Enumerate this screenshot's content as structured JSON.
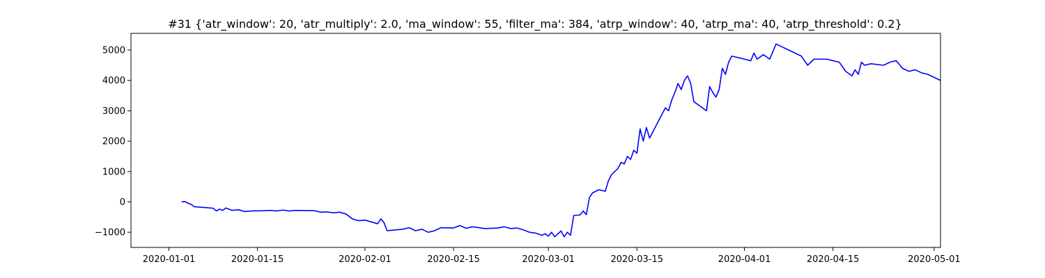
{
  "chart_data": {
    "type": "line",
    "title": "#31 {'atr_window': 20, 'atr_multiply': 2.0, 'ma_window': 55, 'filter_ma': 384, 'atrp_window': 40, 'atrp_ma': 40, 'atrp_threshold': 0.2}",
    "xlabel": "",
    "ylabel": "",
    "xlim": [
      "2019-12-26",
      "2020-05-02"
    ],
    "ylim": [
      -1500,
      5550
    ],
    "x_ticks": [
      "2020-01-01",
      "2020-01-15",
      "2020-02-01",
      "2020-02-15",
      "2020-03-01",
      "2020-03-15",
      "2020-04-01",
      "2020-04-15",
      "2020-05-01"
    ],
    "y_ticks": [
      -1000,
      0,
      1000,
      2000,
      3000,
      4000,
      5000
    ],
    "grid": false,
    "legend": "none",
    "series": [
      {
        "color": "#0000ff",
        "points": [
          [
            "2020-01-03",
            0
          ],
          [
            "2020-01-03T12",
            10
          ],
          [
            "2020-01-04",
            -40
          ],
          [
            "2020-01-04T12",
            -80
          ],
          [
            "2020-01-05",
            -160
          ],
          [
            "2020-01-07",
            -190
          ],
          [
            "2020-01-08",
            -210
          ],
          [
            "2020-01-08T12",
            -300
          ],
          [
            "2020-01-09",
            -240
          ],
          [
            "2020-01-09T12",
            -280
          ],
          [
            "2020-01-10",
            -200
          ],
          [
            "2020-01-11",
            -280
          ],
          [
            "2020-01-12",
            -260
          ],
          [
            "2020-01-13",
            -320
          ],
          [
            "2020-01-14",
            -300
          ],
          [
            "2020-01-16",
            -290
          ],
          [
            "2020-01-17",
            -280
          ],
          [
            "2020-01-18",
            -300
          ],
          [
            "2020-01-19",
            -270
          ],
          [
            "2020-01-20",
            -300
          ],
          [
            "2020-01-21",
            -280
          ],
          [
            "2020-01-24",
            -290
          ],
          [
            "2020-01-25",
            -340
          ],
          [
            "2020-01-26",
            -330
          ],
          [
            "2020-01-27",
            -360
          ],
          [
            "2020-01-28",
            -340
          ],
          [
            "2020-01-29",
            -400
          ],
          [
            "2020-01-30",
            -560
          ],
          [
            "2020-01-31",
            -620
          ],
          [
            "2020-02-01",
            -600
          ],
          [
            "2020-02-02",
            -660
          ],
          [
            "2020-02-03",
            -720
          ],
          [
            "2020-02-03T12",
            -560
          ],
          [
            "2020-02-04",
            -680
          ],
          [
            "2020-02-04T12",
            -950
          ],
          [
            "2020-02-07",
            -900
          ],
          [
            "2020-02-08",
            -850
          ],
          [
            "2020-02-09",
            -950
          ],
          [
            "2020-02-10",
            -900
          ],
          [
            "2020-02-11",
            -1000
          ],
          [
            "2020-02-12",
            -950
          ],
          [
            "2020-02-13",
            -850
          ],
          [
            "2020-02-15",
            -860
          ],
          [
            "2020-02-16",
            -780
          ],
          [
            "2020-02-17",
            -870
          ],
          [
            "2020-02-18",
            -820
          ],
          [
            "2020-02-20",
            -880
          ],
          [
            "2020-02-22",
            -860
          ],
          [
            "2020-02-23",
            -820
          ],
          [
            "2020-02-24",
            -880
          ],
          [
            "2020-02-25",
            -860
          ],
          [
            "2020-02-26",
            -920
          ],
          [
            "2020-02-27",
            -1000
          ],
          [
            "2020-02-28",
            -1030
          ],
          [
            "2020-02-29",
            -1100
          ],
          [
            "2020-02-29T12",
            -1050
          ],
          [
            "2020-03-01",
            -1130
          ],
          [
            "2020-03-01T12",
            -1000
          ],
          [
            "2020-03-02",
            -1150
          ],
          [
            "2020-03-02T12",
            -1050
          ],
          [
            "2020-03-03",
            -960
          ],
          [
            "2020-03-03T12",
            -1150
          ],
          [
            "2020-03-04",
            -1000
          ],
          [
            "2020-03-04T12",
            -1100
          ],
          [
            "2020-03-05",
            -450
          ],
          [
            "2020-03-06",
            -430
          ],
          [
            "2020-03-06T12",
            -300
          ],
          [
            "2020-03-07",
            -420
          ],
          [
            "2020-03-07T12",
            150
          ],
          [
            "2020-03-08",
            300
          ],
          [
            "2020-03-09",
            400
          ],
          [
            "2020-03-10",
            350
          ],
          [
            "2020-03-10T12",
            700
          ],
          [
            "2020-03-11",
            900
          ],
          [
            "2020-03-12",
            1100
          ],
          [
            "2020-03-12T12",
            1300
          ],
          [
            "2020-03-13",
            1250
          ],
          [
            "2020-03-13T12",
            1500
          ],
          [
            "2020-03-14",
            1400
          ],
          [
            "2020-03-14T12",
            1700
          ],
          [
            "2020-03-15",
            1600
          ],
          [
            "2020-03-15T12",
            2400
          ],
          [
            "2020-03-16",
            2000
          ],
          [
            "2020-03-16T12",
            2450
          ],
          [
            "2020-03-17",
            2100
          ],
          [
            "2020-03-18",
            2500
          ],
          [
            "2020-03-19",
            2900
          ],
          [
            "2020-03-19T12",
            3100
          ],
          [
            "2020-03-20",
            3000
          ],
          [
            "2020-03-20T12",
            3350
          ],
          [
            "2020-03-21",
            3600
          ],
          [
            "2020-03-21T12",
            3900
          ],
          [
            "2020-03-22",
            3700
          ],
          [
            "2020-03-22T12",
            4000
          ],
          [
            "2020-03-23",
            4150
          ],
          [
            "2020-03-23T12",
            3900
          ],
          [
            "2020-03-24",
            3300
          ],
          [
            "2020-03-26",
            3000
          ],
          [
            "2020-03-26T12",
            3800
          ],
          [
            "2020-03-27",
            3600
          ],
          [
            "2020-03-27T12",
            3450
          ],
          [
            "2020-03-28",
            3700
          ],
          [
            "2020-03-28T12",
            4400
          ],
          [
            "2020-03-29",
            4200
          ],
          [
            "2020-03-29T12",
            4600
          ],
          [
            "2020-03-30",
            4800
          ],
          [
            "2020-03-31",
            4750
          ],
          [
            "2020-04-01",
            4700
          ],
          [
            "2020-04-02",
            4650
          ],
          [
            "2020-04-02T12",
            4900
          ],
          [
            "2020-04-03",
            4700
          ],
          [
            "2020-04-04",
            4850
          ],
          [
            "2020-04-05",
            4700
          ],
          [
            "2020-04-05T12",
            4950
          ],
          [
            "2020-04-06",
            5200
          ],
          [
            "2020-04-07",
            5100
          ],
          [
            "2020-04-08",
            5000
          ],
          [
            "2020-04-09",
            4900
          ],
          [
            "2020-04-10",
            4800
          ],
          [
            "2020-04-11",
            4500
          ],
          [
            "2020-04-12",
            4700
          ],
          [
            "2020-04-14",
            4700
          ],
          [
            "2020-04-15",
            4650
          ],
          [
            "2020-04-16",
            4600
          ],
          [
            "2020-04-17",
            4300
          ],
          [
            "2020-04-18",
            4150
          ],
          [
            "2020-04-18T12",
            4350
          ],
          [
            "2020-04-19",
            4200
          ],
          [
            "2020-04-19T12",
            4600
          ],
          [
            "2020-04-20",
            4500
          ],
          [
            "2020-04-21",
            4550
          ],
          [
            "2020-04-23",
            4500
          ],
          [
            "2020-04-24",
            4600
          ],
          [
            "2020-04-25",
            4650
          ],
          [
            "2020-04-26",
            4400
          ],
          [
            "2020-04-27",
            4300
          ],
          [
            "2020-04-28",
            4350
          ],
          [
            "2020-04-29",
            4250
          ],
          [
            "2020-04-30",
            4200
          ],
          [
            "2020-05-01",
            4100
          ],
          [
            "2020-05-02",
            4000
          ]
        ]
      }
    ]
  }
}
